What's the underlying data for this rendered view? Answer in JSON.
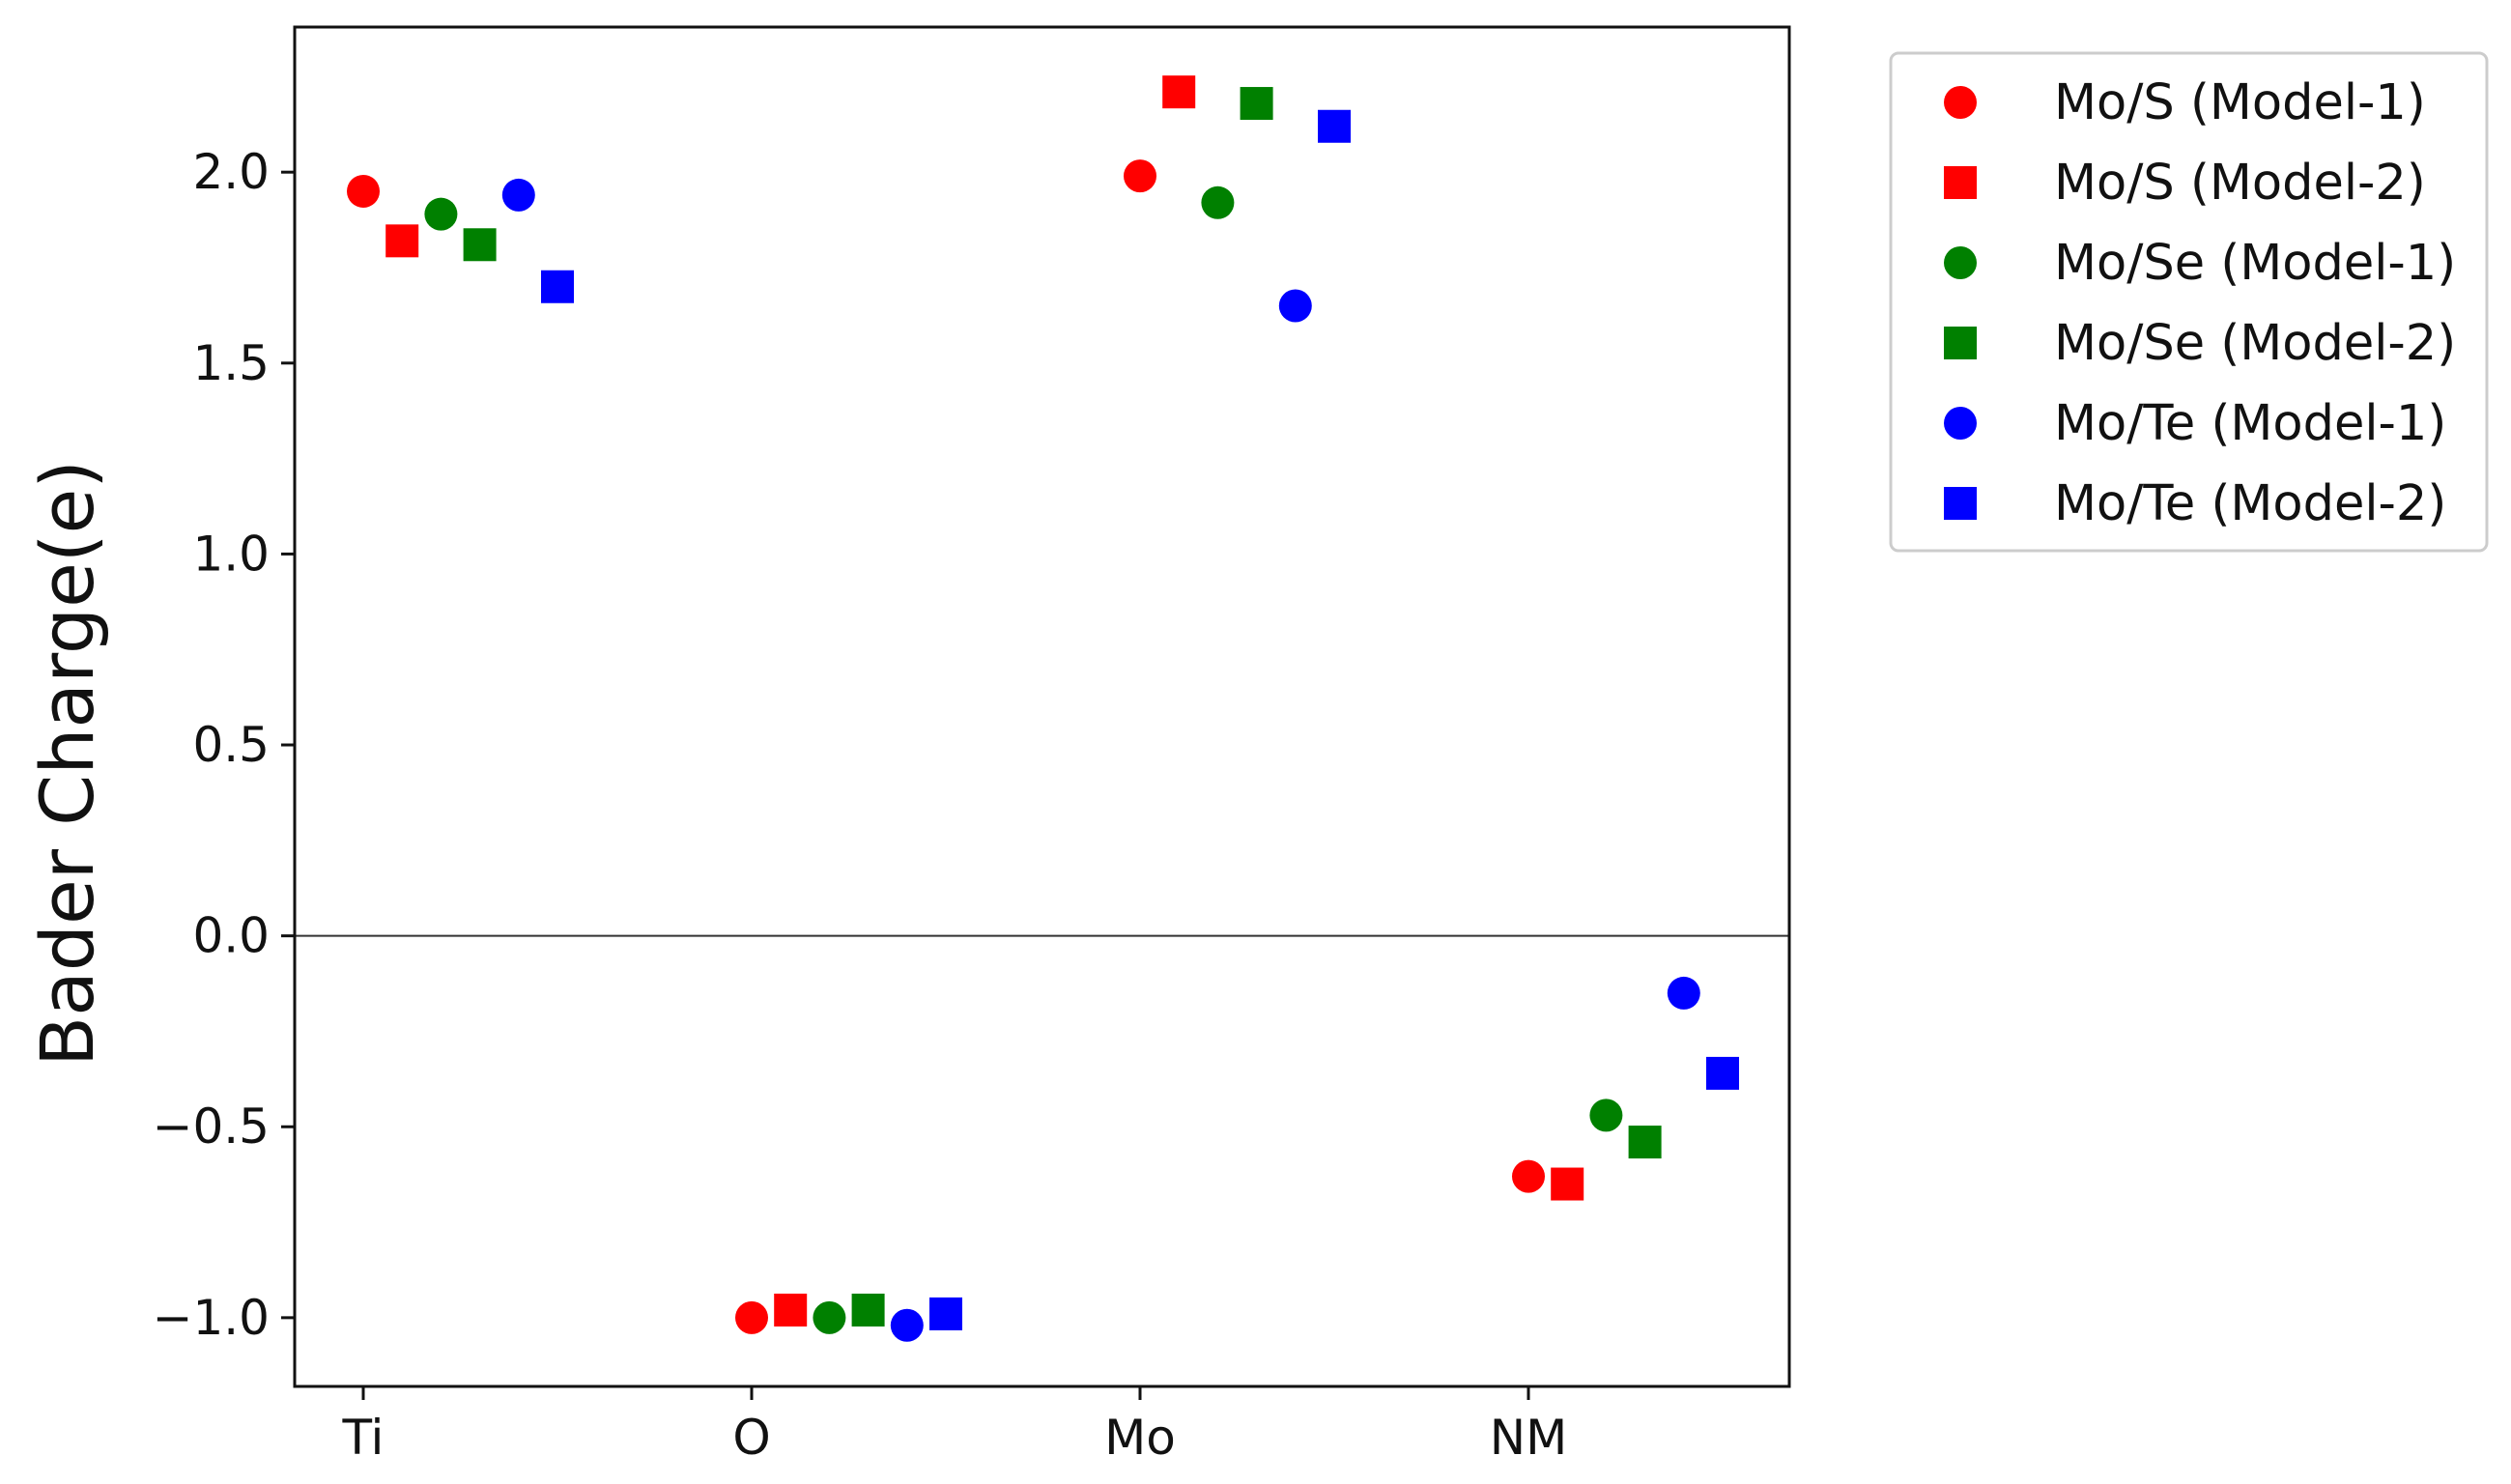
{
  "chart_data": {
    "type": "scatter",
    "title": "",
    "xlabel": "",
    "ylabel": "Bader Charge(e)",
    "categories": [
      "Ti",
      "O",
      "Mo",
      "NM"
    ],
    "ylim": [
      -1.18,
      2.38
    ],
    "yticks": [
      {
        "value": 2.0,
        "label": "2.0"
      },
      {
        "value": 1.5,
        "label": "1.5"
      },
      {
        "value": 1.0,
        "label": "1.0"
      },
      {
        "value": 0.5,
        "label": "0.5"
      },
      {
        "value": 0.0,
        "label": "0.0"
      },
      {
        "value": -0.5,
        "label": "−0.5"
      },
      {
        "value": -1.0,
        "label": "−1.0"
      }
    ],
    "reference_line": 0.0,
    "grid": false,
    "legend_position": "outside-right",
    "series": [
      {
        "name": "Mo/S (Model-1)",
        "color": "#ff0000",
        "marker": "circle",
        "values": [
          1.95,
          -1.0,
          1.99,
          -0.63
        ]
      },
      {
        "name": "Mo/S (Model-2)",
        "color": "#ff0000",
        "marker": "square",
        "values": [
          1.82,
          -0.98,
          2.21,
          -0.65
        ]
      },
      {
        "name": "Mo/Se (Model-1)",
        "color": "#008000",
        "marker": "circle",
        "values": [
          1.89,
          -1.0,
          1.92,
          -0.47
        ]
      },
      {
        "name": "Mo/Se (Model-2)",
        "color": "#008000",
        "marker": "square",
        "values": [
          1.81,
          -0.98,
          2.18,
          -0.54
        ]
      },
      {
        "name": "Mo/Te (Model-1)",
        "color": "#0000ff",
        "marker": "circle",
        "values": [
          1.94,
          -1.02,
          1.65,
          -0.15
        ]
      },
      {
        "name": "Mo/Te (Model-2)",
        "color": "#0000ff",
        "marker": "square",
        "values": [
          1.7,
          -0.99,
          2.12,
          -0.36
        ]
      }
    ]
  }
}
